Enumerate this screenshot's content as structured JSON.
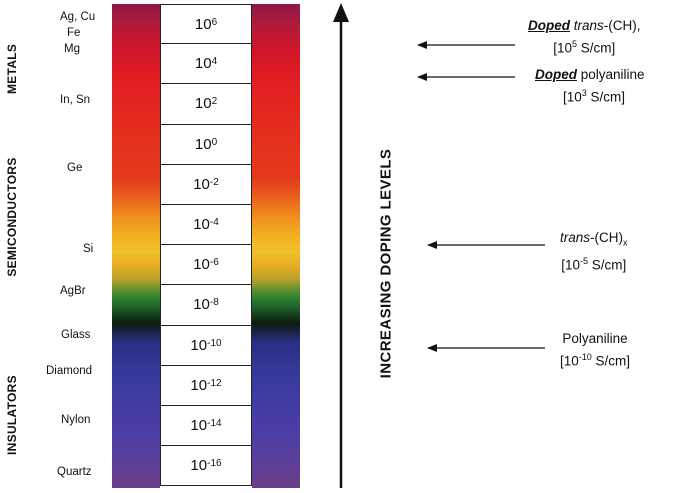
{
  "categories": {
    "metals": "METALS",
    "semiconductors": "SEMICONDUCTORS",
    "insulators": "INSULATORS"
  },
  "materials": {
    "ag_cu": "Ag, Cu",
    "fe": "Fe",
    "mg": "Mg",
    "in_sn": "In, Sn",
    "ge": "Ge",
    "si": "Si",
    "agbr": "AgBr",
    "glass": "Glass",
    "diamond": "Diamond",
    "nylon": "Nylon",
    "quartz": "Quartz"
  },
  "scale": {
    "base": "10",
    "exponents": [
      "6",
      "4",
      "2",
      "0",
      "-2",
      "-4",
      "-6",
      "-8",
      "-10",
      "-12",
      "-14",
      "-16"
    ]
  },
  "axis_label": "INCREASING DOPING LEVELS",
  "annotations": {
    "doped_trans": {
      "doped": "Doped",
      "name": "trans",
      "formula": "-(CH),",
      "value_open": "[10",
      "value_exp": "5",
      "value_unit": " S/cm]"
    },
    "doped_pani": {
      "doped": "Doped",
      "name": " polyaniline",
      "value_open": "[10",
      "value_exp": "3",
      "value_unit": " S/cm]"
    },
    "trans": {
      "name": "trans",
      "formula": "-(CH)",
      "formula_sub": "x",
      "value_open": "[10",
      "value_exp": "-5",
      "value_unit": " S/cm]"
    },
    "pani": {
      "name": "Polyaniline",
      "value_open": "[10",
      "value_exp": "-10",
      "value_unit": " S/cm]"
    }
  },
  "colors": {
    "metal_red": "#e11f22",
    "semi_orange": "#f3b022",
    "semi_green": "#2a7e2f",
    "insulator_blue": "#3a3a9e"
  }
}
